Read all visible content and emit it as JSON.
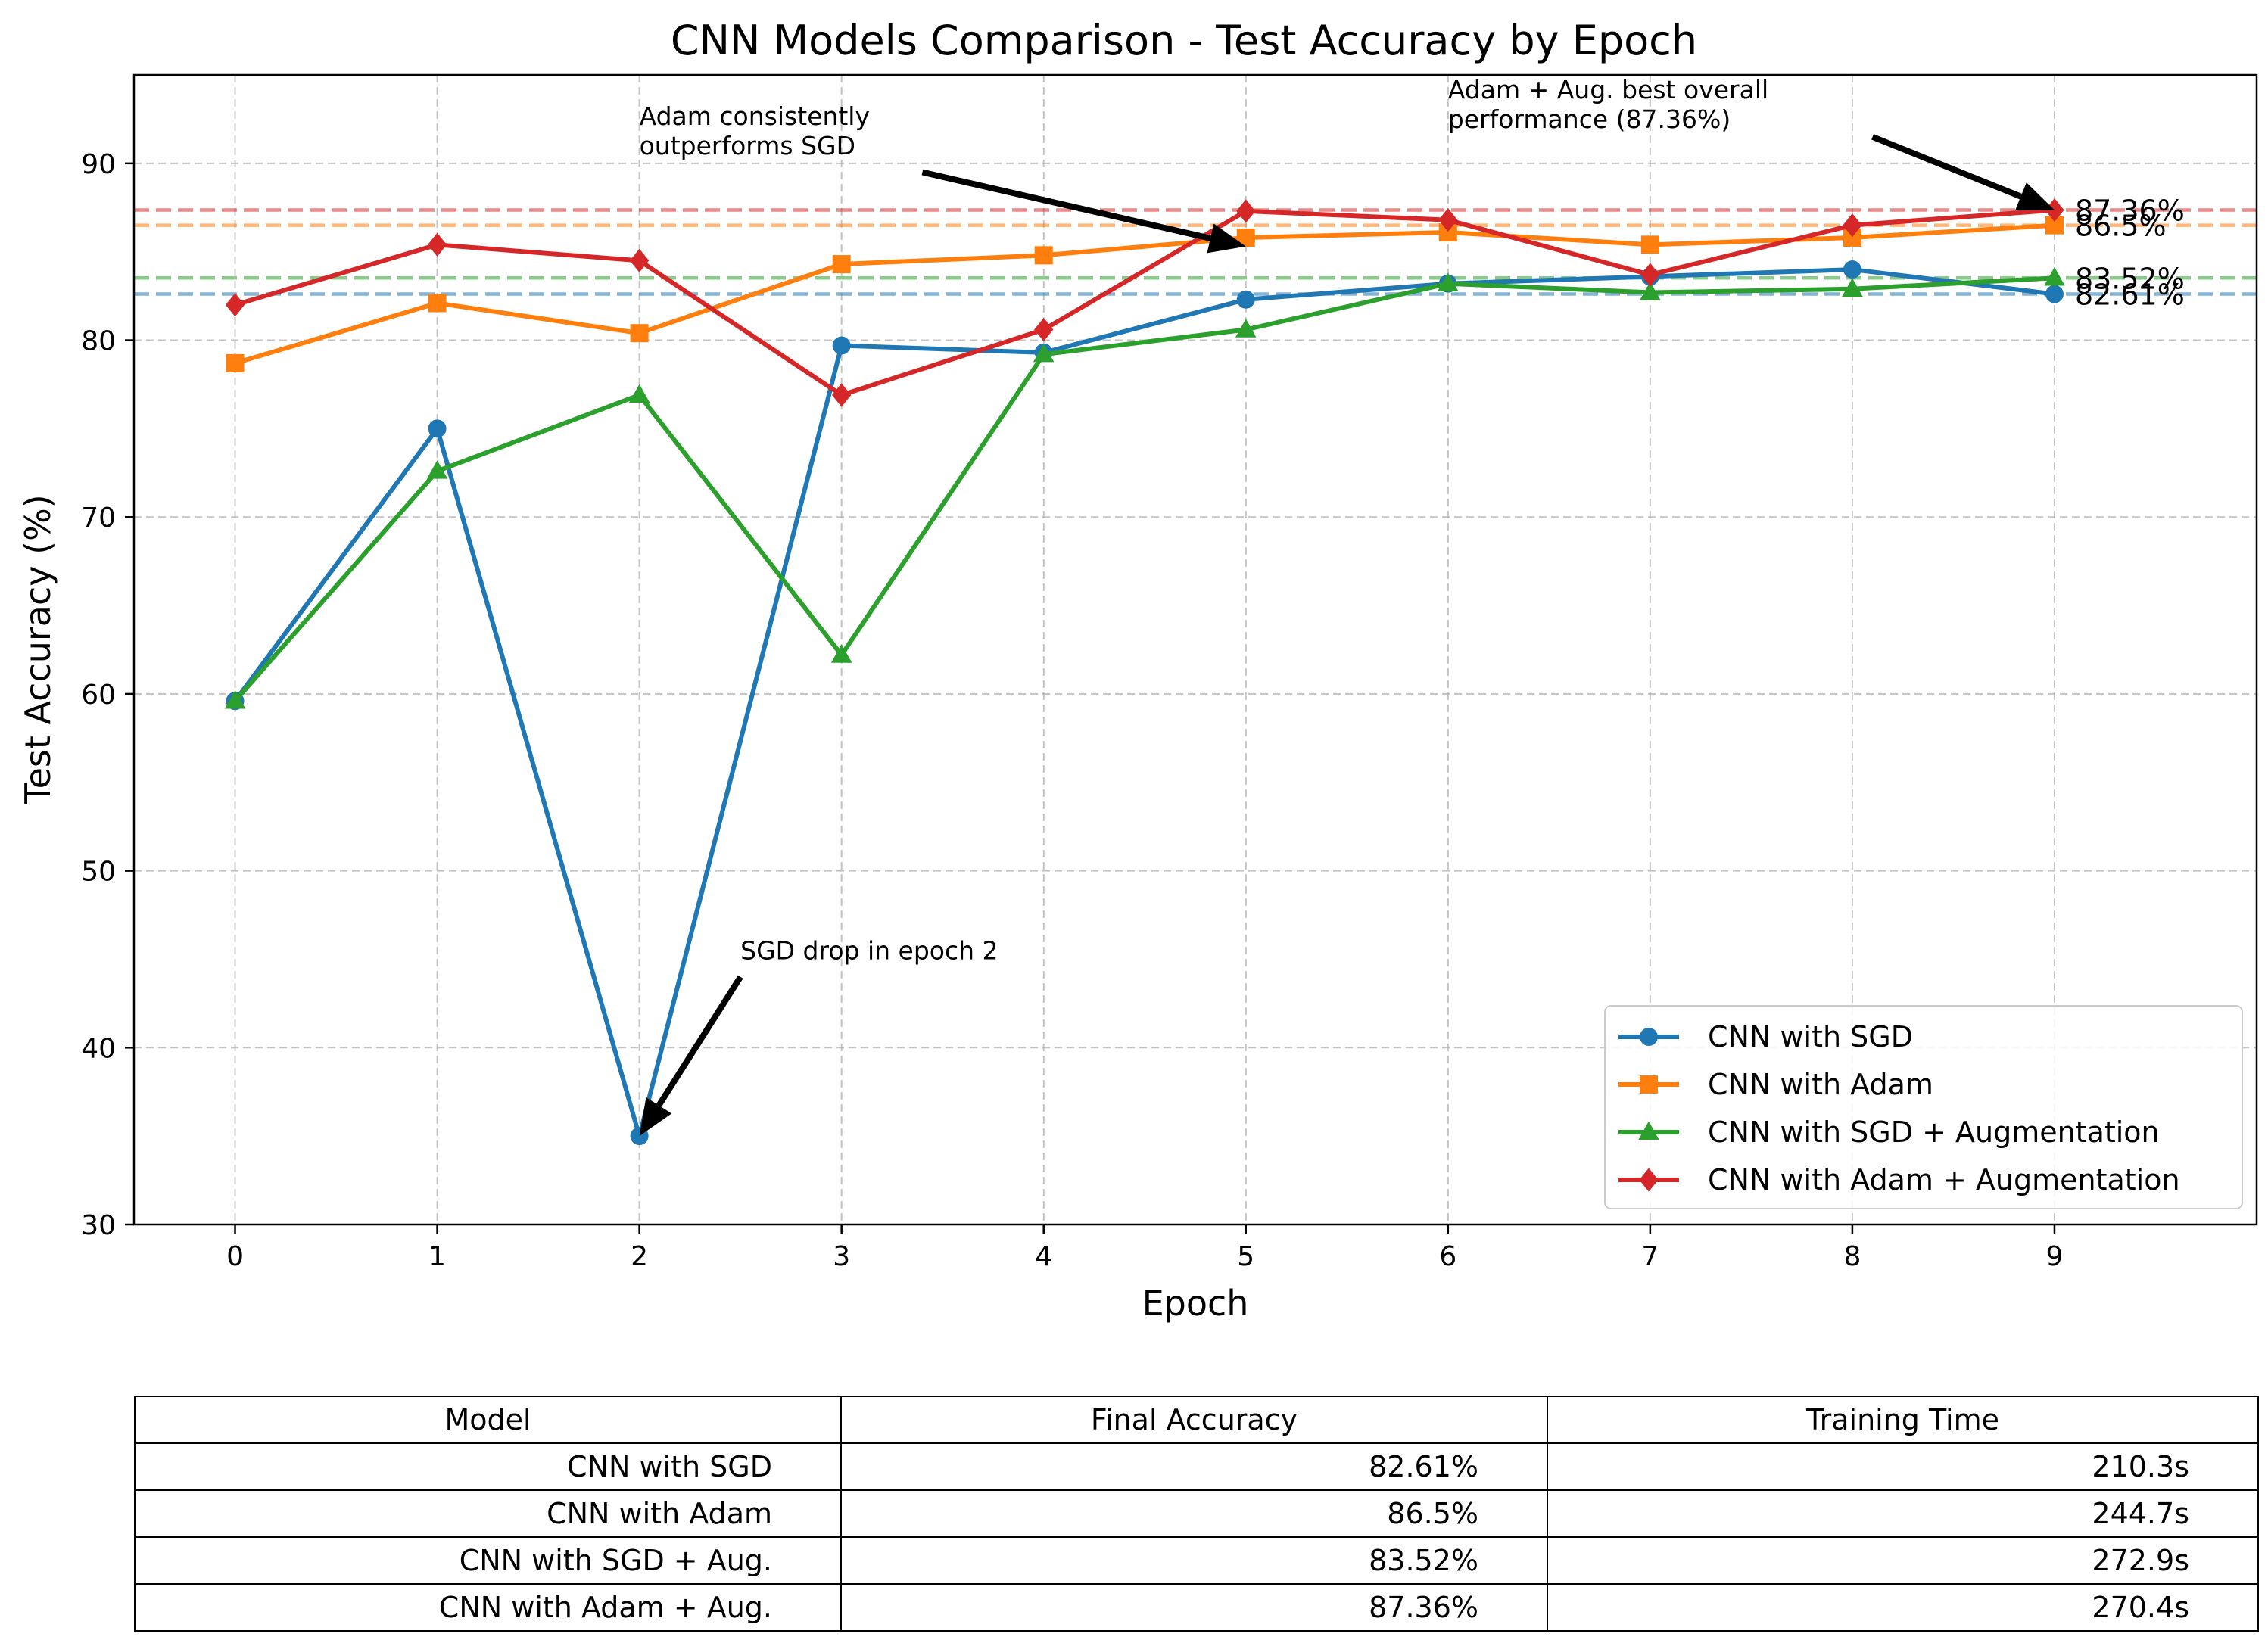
{
  "chart_data": {
    "type": "line",
    "title": "CNN Models Comparison - Test Accuracy by Epoch",
    "xlabel": "Epoch",
    "ylabel": "Test Accuracy (%)",
    "x": [
      0,
      1,
      2,
      3,
      4,
      5,
      6,
      7,
      8,
      9
    ],
    "xlim": [
      -0.5,
      10
    ],
    "ylim": [
      30,
      95
    ],
    "xticks": [
      "0",
      "1",
      "2",
      "3",
      "4",
      "5",
      "6",
      "7",
      "8",
      "9"
    ],
    "yticks": [
      "30",
      "40",
      "50",
      "60",
      "70",
      "80",
      "90"
    ],
    "grid": true,
    "legend_position": "lower-right",
    "series": [
      {
        "name": "CNN with SGD",
        "color": "#1f77b4",
        "marker": "circle",
        "values": [
          59.6,
          75.0,
          35.0,
          79.7,
          79.3,
          82.3,
          83.2,
          83.6,
          84.0,
          82.61
        ],
        "final_label": "82.61%"
      },
      {
        "name": "CNN with Adam",
        "color": "#ff7f0e",
        "marker": "square",
        "values": [
          78.7,
          82.1,
          80.4,
          84.3,
          84.8,
          85.8,
          86.1,
          85.4,
          85.8,
          86.5
        ],
        "final_label": "86.5%"
      },
      {
        "name": "CNN with SGD + Augmentation",
        "color": "#2ca02c",
        "marker": "triangle",
        "values": [
          59.6,
          72.6,
          76.9,
          62.2,
          79.2,
          80.6,
          83.2,
          82.7,
          82.9,
          83.52
        ],
        "final_label": "83.52%"
      },
      {
        "name": "CNN with Adam + Augmentation",
        "color": "#d62728",
        "marker": "diamond",
        "values": [
          82.0,
          85.4,
          84.5,
          76.9,
          80.6,
          87.3,
          86.8,
          83.7,
          86.5,
          87.36
        ],
        "final_label": "87.36%"
      }
    ],
    "reference_lines": [
      {
        "y": 82.61,
        "color": "#1f77b4"
      },
      {
        "y": 86.5,
        "color": "#ff7f0e"
      },
      {
        "y": 83.52,
        "color": "#2ca02c"
      },
      {
        "y": 87.36,
        "color": "#d62728"
      }
    ],
    "annotations": [
      {
        "lines": [
          "Adam consistently",
          "outperforms SGD"
        ],
        "text_at": [
          2,
          90.5
        ],
        "arrow_from": [
          3.4,
          89.5
        ],
        "arrow_to": [
          5,
          85.3
        ]
      },
      {
        "lines": [
          "Adam + Aug. best overall",
          "performance (87.36%)"
        ],
        "text_at": [
          6,
          92.0
        ],
        "arrow_from": [
          8.1,
          91.5
        ],
        "arrow_to": [
          9,
          87.36
        ]
      },
      {
        "lines": [
          "SGD drop in epoch 2"
        ],
        "text_at": [
          2.5,
          45.0
        ],
        "arrow_from": [
          2.5,
          44.0
        ],
        "arrow_to": [
          2,
          35.0
        ]
      }
    ]
  },
  "table": {
    "headers": [
      "Model",
      "Final Accuracy",
      "Training Time"
    ],
    "rows": [
      [
        "CNN with SGD",
        "82.61%",
        "210.3s"
      ],
      [
        "CNN with Adam",
        "86.5%",
        "244.7s"
      ],
      [
        "CNN with SGD + Aug.",
        "83.52%",
        "272.9s"
      ],
      [
        "CNN with Adam + Aug.",
        "87.36%",
        "270.4s"
      ]
    ]
  }
}
